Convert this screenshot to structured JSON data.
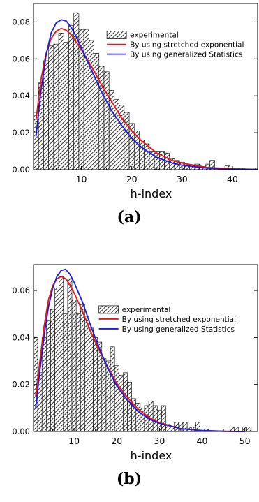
{
  "chart_data": [
    {
      "type": "bar",
      "panel_label": "(a)",
      "xlabel": "h-index",
      "ylabel": "",
      "xlim": [
        0.5,
        45
      ],
      "ylim": [
        0,
        0.09
      ],
      "xticks": [
        10,
        20,
        30,
        40
      ],
      "yticks": [
        0.0,
        0.02,
        0.04,
        0.06,
        0.08
      ],
      "ytick_labels": [
        "0.00",
        "0.02",
        "0.04",
        "0.06",
        "0.08"
      ],
      "legend_position": "upper-right",
      "grid": false,
      "bar_values": [
        0.031,
        0.047,
        0.059,
        0.067,
        0.068,
        0.074,
        0.069,
        0.078,
        0.085,
        0.076,
        0.076,
        0.07,
        0.063,
        0.056,
        0.053,
        0.043,
        0.038,
        0.035,
        0.031,
        0.025,
        0.021,
        0.016,
        0.014,
        0.01,
        0.01,
        0.01,
        0.009,
        0.006,
        0.005,
        0.004,
        0.003,
        0.002,
        0.003,
        0.001,
        0.003,
        0.005,
        0.001,
        0.001,
        0.002,
        0.001,
        0.001,
        0.001,
        0.0,
        0.0,
        0.001
      ],
      "series": [
        {
          "name": "experimental",
          "color": "#000000",
          "style": "hatched-bars"
        },
        {
          "name": "By using stretched exponential",
          "color": "#e8161b",
          "x": [
            1,
            2,
            3,
            4,
            5,
            6,
            7,
            8,
            9,
            10,
            12,
            14,
            16,
            18,
            20,
            22,
            25,
            28,
            30,
            35,
            40,
            45
          ],
          "y": [
            0.027,
            0.049,
            0.063,
            0.071,
            0.075,
            0.0765,
            0.0755,
            0.073,
            0.069,
            0.065,
            0.056,
            0.046,
            0.037,
            0.028,
            0.021,
            0.0155,
            0.009,
            0.005,
            0.0035,
            0.0012,
            0.0004,
            0.0001
          ]
        },
        {
          "name": "By using generalized Statistics",
          "color": "#1c1cd9",
          "x": [
            1,
            2,
            3,
            4,
            5,
            6,
            7,
            8,
            9,
            10,
            12,
            14,
            16,
            18,
            20,
            22,
            25,
            28,
            30,
            35,
            40,
            45
          ],
          "y": [
            0.018,
            0.043,
            0.062,
            0.074,
            0.0795,
            0.0812,
            0.0805,
            0.077,
            0.072,
            0.066,
            0.054,
            0.042,
            0.032,
            0.024,
            0.017,
            0.012,
            0.0066,
            0.0036,
            0.0024,
            0.0008,
            0.0003,
            0.0001
          ]
        }
      ]
    },
    {
      "type": "bar",
      "panel_label": "(b)",
      "xlabel": "h-index",
      "ylabel": "",
      "xlim": [
        0.5,
        53
      ],
      "ylim": [
        0,
        0.071
      ],
      "xticks": [
        10,
        20,
        30,
        40,
        50
      ],
      "yticks": [
        0.0,
        0.02,
        0.04,
        0.06
      ],
      "ytick_labels": [
        "0.00",
        "0.02",
        "0.04",
        "0.06"
      ],
      "legend_position": "upper-right",
      "grid": false,
      "bar_values": [
        0.04,
        0.025,
        0.04,
        0.047,
        0.052,
        0.061,
        0.066,
        0.05,
        0.065,
        0.056,
        0.05,
        0.054,
        0.049,
        0.044,
        0.04,
        0.038,
        0.031,
        0.03,
        0.036,
        0.028,
        0.024,
        0.025,
        0.021,
        0.014,
        0.012,
        0.01,
        0.011,
        0.013,
        0.011,
        0.009,
        0.011,
        0.003,
        0.002,
        0.004,
        0.004,
        0.004,
        0.002,
        0.002,
        0.004,
        0.0,
        0.001,
        0.0,
        0.0,
        0.0,
        0.0,
        0.0,
        0.002,
        0.002,
        0.0,
        0.002,
        0.002
      ],
      "series": [
        {
          "name": "experimental",
          "color": "#000000",
          "style": "hatched-bars"
        },
        {
          "name": "By using stretched exponential",
          "color": "#e8161b",
          "x": [
            1,
            2,
            3,
            4,
            5,
            6,
            7,
            8,
            9,
            10,
            12,
            14,
            16,
            18,
            20,
            22,
            25,
            28,
            30,
            35,
            40,
            45,
            50
          ],
          "y": [
            0.015,
            0.03,
            0.045,
            0.056,
            0.062,
            0.065,
            0.066,
            0.065,
            0.0625,
            0.059,
            0.051,
            0.042,
            0.034,
            0.027,
            0.0205,
            0.0155,
            0.0095,
            0.0055,
            0.0038,
            0.0012,
            0.0004,
            0.0001,
            0.0
          ]
        },
        {
          "name": "By using generalized Statistics",
          "color": "#1c1cd9",
          "x": [
            1,
            2,
            3,
            4,
            5,
            6,
            7,
            8,
            9,
            10,
            12,
            14,
            16,
            18,
            20,
            22,
            25,
            28,
            30,
            35,
            40,
            45,
            50
          ],
          "y": [
            0.01,
            0.026,
            0.041,
            0.053,
            0.061,
            0.066,
            0.0685,
            0.069,
            0.067,
            0.0635,
            0.055,
            0.0445,
            0.035,
            0.0265,
            0.0195,
            0.0145,
            0.0085,
            0.005,
            0.0035,
            0.0012,
            0.0004,
            0.0001,
            0.0
          ]
        }
      ]
    }
  ]
}
